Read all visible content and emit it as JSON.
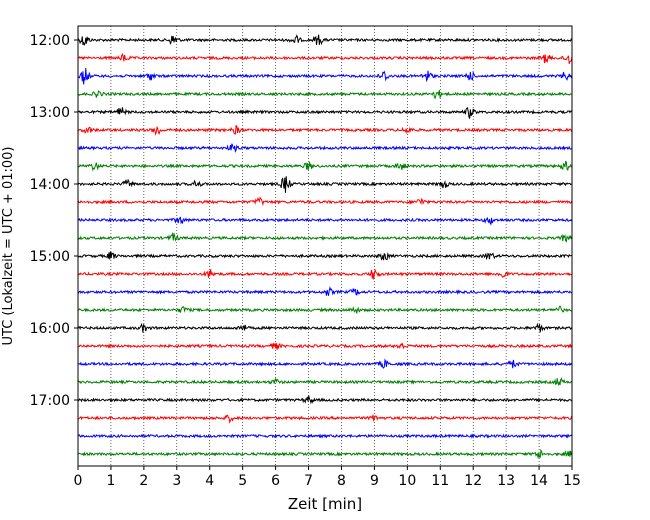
{
  "chart_data": {
    "type": "line",
    "title": "",
    "xlabel": "Zeit  [min]",
    "ylabel": "UTC (Lokalzeit = UTC + 01:00)",
    "xlim": [
      0,
      15
    ],
    "x_ticks": [
      "0",
      "1",
      "2",
      "3",
      "4",
      "5",
      "6",
      "7",
      "8",
      "9",
      "10",
      "11",
      "12",
      "13",
      "14",
      "15"
    ],
    "y_ticks": [
      "12:00",
      "13:00",
      "14:00",
      "15:00",
      "16:00",
      "17:00"
    ],
    "grid": "vertical dotted lines at each minute",
    "legend": "none",
    "trace_interval_minutes": 15,
    "trace_colors": [
      "#000000",
      "#ff0000",
      "#0000ff",
      "#008000"
    ],
    "traces": [
      {
        "start": "12:00",
        "color": "#000000",
        "bursts": [
          [
            0.2,
            1.0
          ],
          [
            2.9,
            0.9
          ],
          [
            6.6,
            0.7
          ],
          [
            7.3,
            0.8
          ]
        ]
      },
      {
        "start": "12:15",
        "color": "#ff0000",
        "bursts": [
          [
            1.4,
            0.6
          ],
          [
            14.2,
            0.7
          ],
          [
            14.9,
            1.0
          ]
        ]
      },
      {
        "start": "12:30",
        "color": "#0000ff",
        "bursts": [
          [
            0.2,
            1.3
          ],
          [
            2.2,
            0.6
          ],
          [
            9.3,
            0.8
          ],
          [
            10.6,
            0.9
          ],
          [
            11.9,
            0.7
          ],
          [
            14.8,
            0.6
          ]
        ]
      },
      {
        "start": "12:45",
        "color": "#008000",
        "bursts": [
          [
            0.6,
            0.5
          ],
          [
            10.9,
            0.7
          ]
        ]
      },
      {
        "start": "13:00",
        "color": "#000000",
        "bursts": [
          [
            1.3,
            0.7
          ],
          [
            11.9,
            0.9
          ]
        ]
      },
      {
        "start": "13:15",
        "color": "#ff0000",
        "bursts": [
          [
            0.3,
            0.5
          ],
          [
            2.4,
            0.8
          ],
          [
            4.8,
            0.6
          ],
          [
            10.0,
            0.5
          ]
        ]
      },
      {
        "start": "13:30",
        "color": "#0000ff",
        "bursts": [
          [
            4.7,
            0.6
          ]
        ]
      },
      {
        "start": "13:45",
        "color": "#008000",
        "bursts": [
          [
            0.5,
            0.6
          ],
          [
            7.0,
            0.6
          ],
          [
            9.8,
            0.6
          ],
          [
            14.8,
            0.7
          ]
        ]
      },
      {
        "start": "14:00",
        "color": "#000000",
        "bursts": [
          [
            1.5,
            0.6
          ],
          [
            3.6,
            0.5
          ],
          [
            6.3,
            1.4
          ],
          [
            11.1,
            0.6
          ]
        ]
      },
      {
        "start": "14:15",
        "color": "#ff0000",
        "bursts": [
          [
            5.5,
            0.6
          ],
          [
            10.4,
            0.5
          ]
        ]
      },
      {
        "start": "14:30",
        "color": "#0000ff",
        "bursts": [
          [
            3.1,
            0.6
          ],
          [
            12.5,
            0.6
          ]
        ]
      },
      {
        "start": "14:45",
        "color": "#008000",
        "bursts": [
          [
            2.9,
            0.6
          ],
          [
            14.8,
            0.5
          ]
        ]
      },
      {
        "start": "15:00",
        "color": "#000000",
        "bursts": [
          [
            1.0,
            0.6
          ],
          [
            9.3,
            0.7
          ],
          [
            12.5,
            0.6
          ]
        ]
      },
      {
        "start": "15:15",
        "color": "#ff0000",
        "bursts": [
          [
            4.0,
            0.7
          ],
          [
            9.0,
            0.9
          ],
          [
            12.9,
            0.6
          ]
        ]
      },
      {
        "start": "15:30",
        "color": "#0000ff",
        "bursts": [
          [
            7.6,
            0.6
          ],
          [
            8.4,
            0.5
          ]
        ]
      },
      {
        "start": "15:45",
        "color": "#008000",
        "bursts": [
          [
            3.2,
            0.5
          ],
          [
            8.4,
            0.5
          ],
          [
            14.6,
            0.5
          ]
        ]
      },
      {
        "start": "16:00",
        "color": "#000000",
        "bursts": [
          [
            2.0,
            0.6
          ],
          [
            5.0,
            0.5
          ],
          [
            14.0,
            0.6
          ]
        ]
      },
      {
        "start": "16:15",
        "color": "#ff0000",
        "bursts": [
          [
            6.0,
            0.5
          ],
          [
            9.8,
            0.5
          ]
        ]
      },
      {
        "start": "16:30",
        "color": "#0000ff",
        "bursts": [
          [
            9.3,
            0.6
          ],
          [
            13.2,
            0.6
          ]
        ]
      },
      {
        "start": "16:45",
        "color": "#008000",
        "bursts": [
          [
            6.0,
            0.4
          ],
          [
            14.6,
            0.6
          ]
        ]
      },
      {
        "start": "17:00",
        "color": "#000000",
        "bursts": [
          [
            7.0,
            0.6
          ]
        ]
      },
      {
        "start": "17:15",
        "color": "#ff0000",
        "bursts": [
          [
            4.6,
            0.5
          ],
          [
            9.0,
            0.4
          ]
        ]
      },
      {
        "start": "17:30",
        "color": "#0000ff",
        "bursts": []
      },
      {
        "start": "17:45",
        "color": "#008000",
        "bursts": [
          [
            14.0,
            0.7
          ],
          [
            14.9,
            0.4
          ]
        ]
      }
    ]
  }
}
